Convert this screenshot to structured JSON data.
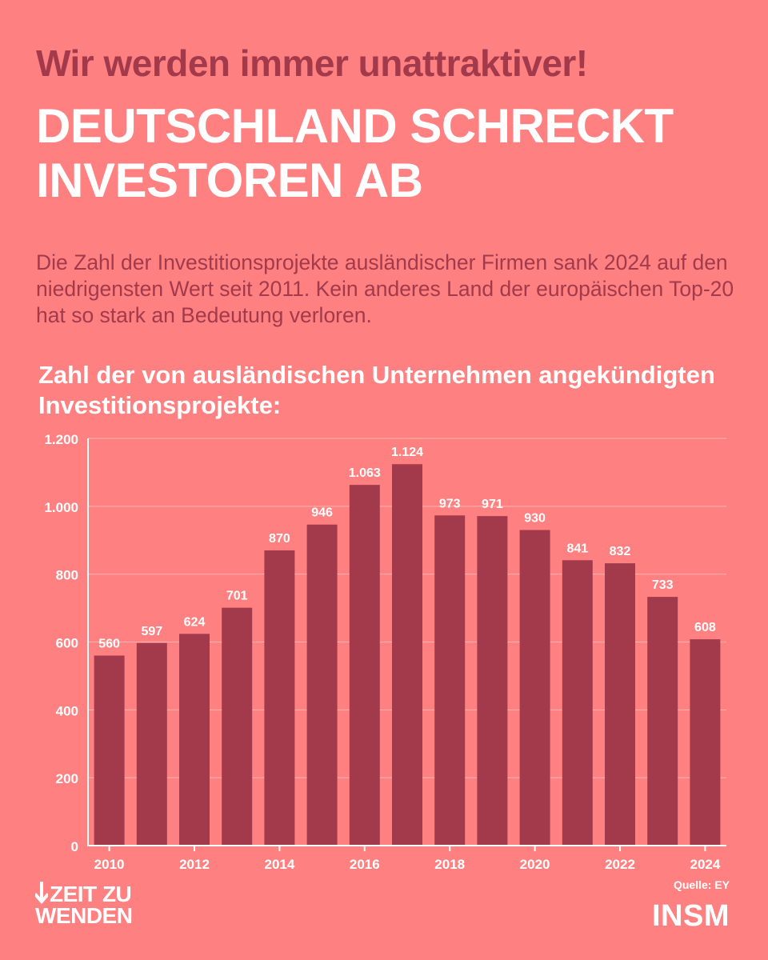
{
  "kicker": "Wir werden immer unattraktiver!",
  "headline": {
    "line1": "DEUTSCHLAND SCHRECKT",
    "line2": "INVESTOREN AB"
  },
  "intro": "Die Zahl der Investitionsprojekte ausländischer Firmen sank 2024 auf den niedrigensten Wert seit 2011. Kein anderes Land der europäischen Top-20 hat so stark an Bedeutung verloren.",
  "colors": {
    "background": "#ff8080",
    "bar": "#a23a4c",
    "text_light": "#ffffff",
    "text_dark": "#a23a4c"
  },
  "chart_data": {
    "type": "bar",
    "title": "Zahl der von ausländischen Unternehmen angekündigten Investitionsprojekte:",
    "categories": [
      "2010",
      "2011",
      "2012",
      "2013",
      "2014",
      "2015",
      "2016",
      "2017",
      "2018",
      "2019",
      "2020",
      "2021",
      "2022",
      "2023",
      "2024"
    ],
    "values": [
      560,
      597,
      624,
      701,
      870,
      946,
      1063,
      1124,
      973,
      971,
      930,
      841,
      832,
      733,
      608
    ],
    "value_labels": [
      "560",
      "597",
      "624",
      "701",
      "870",
      "946",
      "1.063",
      "1.124",
      "973",
      "971",
      "930",
      "841",
      "832",
      "733",
      "608"
    ],
    "x_tick_labels": [
      "2010",
      "2012",
      "2014",
      "2016",
      "2018",
      "2020",
      "2022",
      "2024"
    ],
    "y_ticks": [
      0,
      200,
      400,
      600,
      800,
      1000,
      1200
    ],
    "y_tick_labels": [
      "0",
      "200",
      "400",
      "600",
      "800",
      "1.000",
      "1.200"
    ],
    "ylim": [
      0,
      1200
    ],
    "xlabel": "",
    "ylabel": "",
    "grid": true
  },
  "footer": {
    "logo_line1": "ZEIT ZU",
    "logo_line2": "WENDEN",
    "source": "Quelle: EY",
    "brand": "INSM"
  }
}
